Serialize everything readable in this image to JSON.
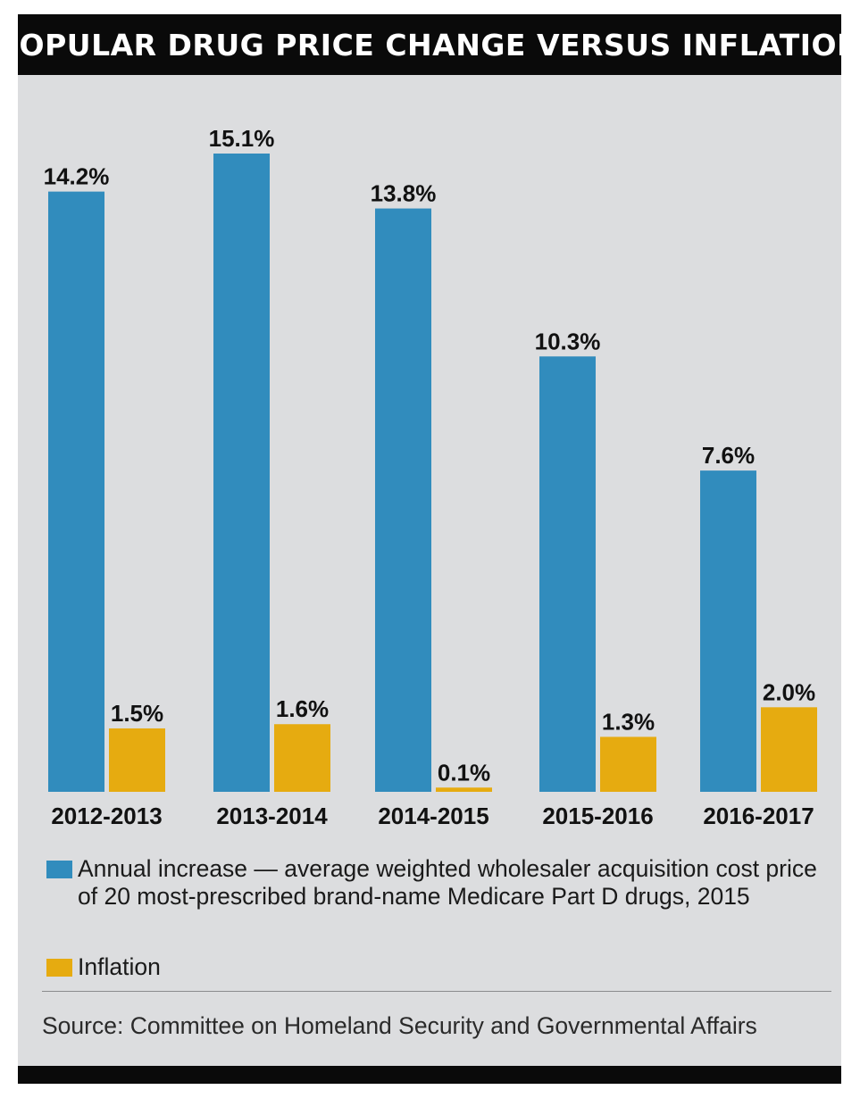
{
  "chart_data": {
    "type": "bar",
    "title": "POPULAR DRUG PRICE CHANGE VERSUS INFLATION",
    "categories": [
      "2012-2013",
      "2013-2014",
      "2014-2015",
      "2015-2016",
      "2016-2017"
    ],
    "series": [
      {
        "name": "Annual increase — average weighted wholesaler acquisition cost price of 20 most-prescribed brand-name Medicare Part D drugs, 2015",
        "color": "#318cbd",
        "values": [
          14.2,
          15.1,
          13.8,
          10.3,
          7.6
        ],
        "labels": [
          "14.2%",
          "15.1%",
          "13.8%",
          "10.3%",
          "7.6%"
        ]
      },
      {
        "name": "Inflation",
        "color": "#e6ab10",
        "values": [
          1.5,
          1.6,
          0.1,
          1.3,
          2.0
        ],
        "labels": [
          "1.5%",
          "1.6%",
          "0.1%",
          "1.3%",
          "2.0%"
        ]
      }
    ],
    "ylim": [
      0,
      15.1
    ],
    "grid": false,
    "legend_position": "bottom"
  },
  "source": "Source: Committee on Homeland Security and Governmental Affairs"
}
